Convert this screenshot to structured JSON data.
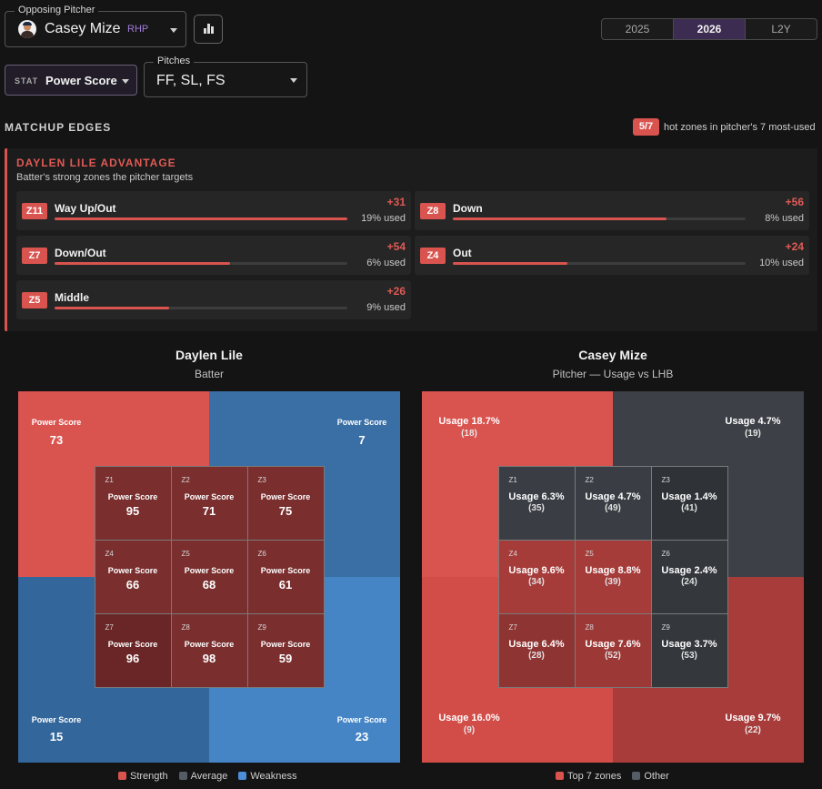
{
  "pitcher_select": {
    "label": "Opposing Pitcher",
    "name": "Casey Mize",
    "hand": "RHP"
  },
  "year_toggle": {
    "options": [
      "2025",
      "2026",
      "L2Y"
    ],
    "selected": "2026"
  },
  "stat_select": {
    "tag": "STAT",
    "value": "Power Score"
  },
  "pitches_select": {
    "label": "Pitches",
    "value": "FF, SL, FS"
  },
  "matchup": {
    "title": "MATCHUP EDGES",
    "hot_count": "5/7",
    "hot_text": "hot zones in pitcher's 7 most-used"
  },
  "advantage": {
    "title": "DAYLEN LILE ADVANTAGE",
    "subtitle": "Batter's strong zones the pitcher targets",
    "zones": [
      {
        "tag": "Z11",
        "name": "Way Up/Out",
        "delta": "+31",
        "used": "19% used",
        "fill": 1.0
      },
      {
        "tag": "Z8",
        "name": "Down",
        "delta": "+56",
        "used": "8% used",
        "fill": 0.73
      },
      {
        "tag": "Z7",
        "name": "Down/Out",
        "delta": "+54",
        "used": "6% used",
        "fill": 0.6
      },
      {
        "tag": "Z4",
        "name": "Out",
        "delta": "+24",
        "used": "10% used",
        "fill": 0.39
      },
      {
        "tag": "Z5",
        "name": "Middle",
        "delta": "+26",
        "used": "9% used",
        "fill": 0.39
      }
    ]
  },
  "batter_map": {
    "title": "Daylen Lile",
    "subtitle": "Batter",
    "metric_label": "Power Score",
    "outer": [
      {
        "pos": "top-left",
        "value": "73",
        "color": "#d9534f"
      },
      {
        "pos": "top-right",
        "value": "7",
        "color": "#3a6fa6"
      },
      {
        "pos": "bottom-left",
        "value": "15",
        "color": "#33669b"
      },
      {
        "pos": "bottom-right",
        "value": "23",
        "color": "#4585c6"
      }
    ],
    "cells": [
      {
        "zone": "Z1",
        "value": "95",
        "color": "#7a2e2e"
      },
      {
        "zone": "Z2",
        "value": "71",
        "color": "#7a2e2e"
      },
      {
        "zone": "Z3",
        "value": "75",
        "color": "#7a2e2e"
      },
      {
        "zone": "Z4",
        "value": "66",
        "color": "#7a2e2e"
      },
      {
        "zone": "Z5",
        "value": "68",
        "color": "#7a2e2e"
      },
      {
        "zone": "Z6",
        "value": "61",
        "color": "#7a2e2e"
      },
      {
        "zone": "Z7",
        "value": "96",
        "color": "#6a2626"
      },
      {
        "zone": "Z8",
        "value": "98",
        "color": "#7a2e2e"
      },
      {
        "zone": "Z9",
        "value": "59",
        "color": "#7a2e2e"
      }
    ],
    "legend": [
      {
        "label": "Strength",
        "color": "#d9534f"
      },
      {
        "label": "Average",
        "color": "#555c66"
      },
      {
        "label": "Weakness",
        "color": "#4a8fd8"
      }
    ]
  },
  "pitcher_map": {
    "title": "Casey Mize",
    "subtitle": "Pitcher — Usage vs LHB",
    "outer": [
      {
        "pos": "top-left",
        "usage": "Usage 18.7%",
        "count": "(18)",
        "color": "#d9534f"
      },
      {
        "pos": "top-right",
        "usage": "Usage 4.7%",
        "count": "(19)",
        "color": "#3d4046"
      },
      {
        "pos": "bottom-left",
        "usage": "Usage 16.0%",
        "count": "(9)",
        "color": "#d24c48"
      },
      {
        "pos": "bottom-right",
        "usage": "Usage 9.7%",
        "count": "(22)",
        "color": "#a83c3a"
      }
    ],
    "cells": [
      {
        "zone": "Z1",
        "usage": "Usage 6.3%",
        "count": "(35)",
        "color": "#3a3e44"
      },
      {
        "zone": "Z2",
        "usage": "Usage 4.7%",
        "count": "(49)",
        "color": "#3a3e44"
      },
      {
        "zone": "Z3",
        "usage": "Usage 1.4%",
        "count": "(41)",
        "color": "#2f3237"
      },
      {
        "zone": "Z4",
        "usage": "Usage 9.6%",
        "count": "(34)",
        "color": "#a53c3a"
      },
      {
        "zone": "Z5",
        "usage": "Usage 8.8%",
        "count": "(39)",
        "color": "#a53c3a"
      },
      {
        "zone": "Z6",
        "usage": "Usage 2.4%",
        "count": "(24)",
        "color": "#34373c"
      },
      {
        "zone": "Z7",
        "usage": "Usage 6.4%",
        "count": "(28)",
        "color": "#8e3432"
      },
      {
        "zone": "Z8",
        "usage": "Usage 7.6%",
        "count": "(52)",
        "color": "#9c3937"
      },
      {
        "zone": "Z9",
        "usage": "Usage 3.7%",
        "count": "(53)",
        "color": "#34373c"
      }
    ],
    "legend": [
      {
        "label": "Top 7 zones",
        "color": "#d9534f"
      },
      {
        "label": "Other",
        "color": "#555c66"
      }
    ]
  }
}
